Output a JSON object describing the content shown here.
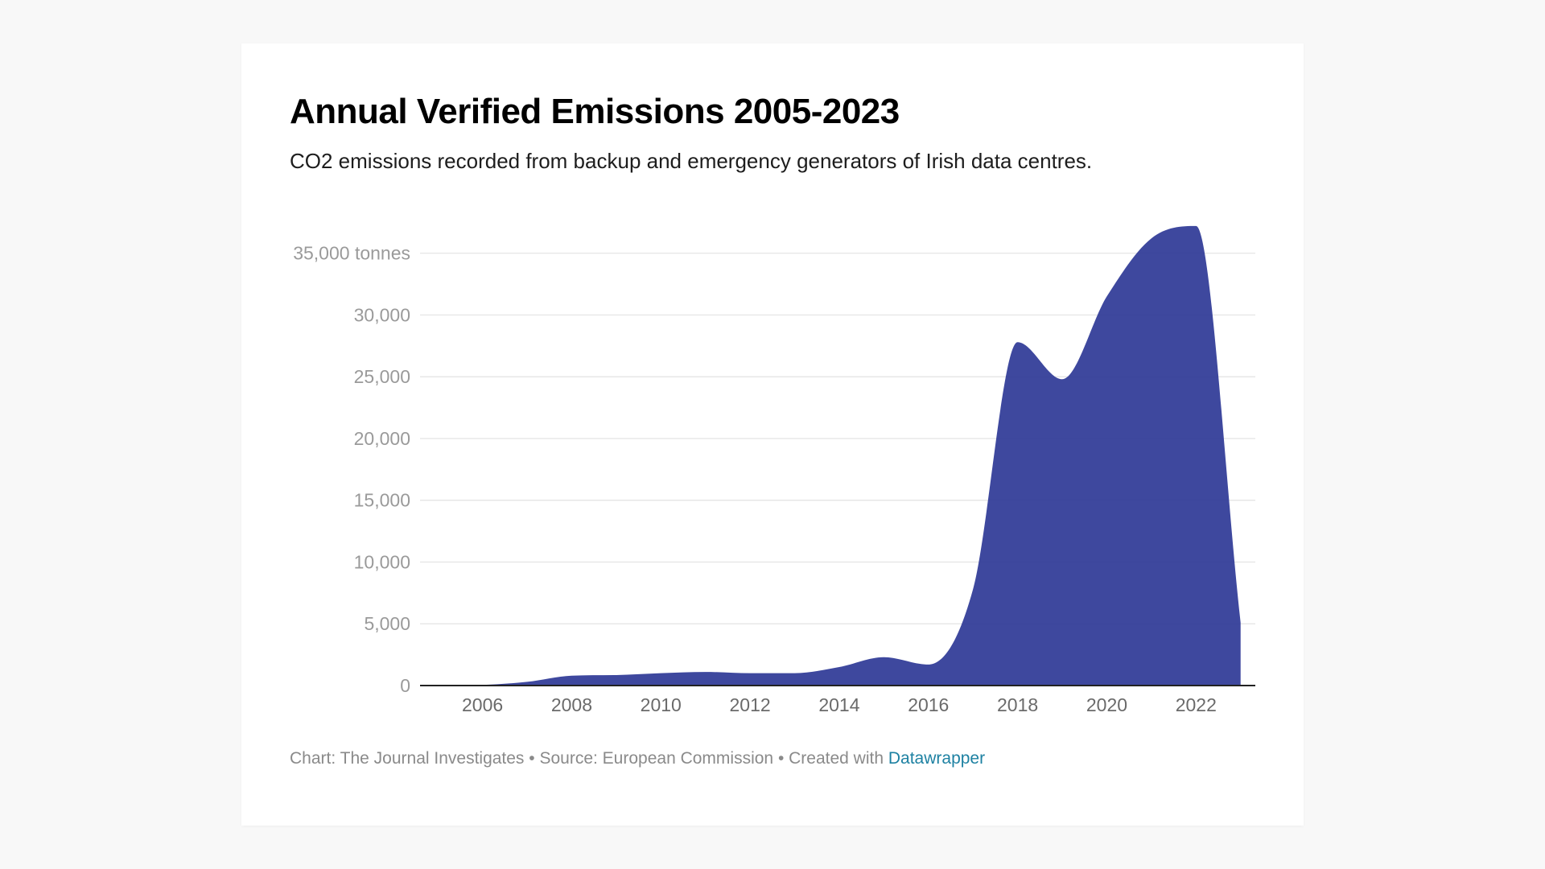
{
  "header": {
    "title": "Annual Verified Emissions 2005-2023",
    "subtitle": "CO2 emissions recorded from backup and emergency generators of Irish data centres."
  },
  "footer": {
    "chart_credit": "Chart: The Journal Investigates",
    "separator": " • ",
    "source": "Source: European Commission",
    "created_with": "Created with ",
    "tool_link": "Datawrapper"
  },
  "colors": {
    "area_fill": "#2f3a97",
    "grid": "#e3e3e3",
    "baseline": "#222222",
    "link": "#1d81a2"
  },
  "chart_data": {
    "type": "area",
    "title": "Annual Verified Emissions 2005-2023",
    "subtitle": "CO2 emissions recorded from backup and emergency generators of Irish data centres.",
    "xlabel": "",
    "ylabel": "",
    "x": [
      2005,
      2006,
      2007,
      2008,
      2009,
      2010,
      2011,
      2012,
      2013,
      2014,
      2015,
      2016,
      2017,
      2018,
      2019,
      2020,
      2021,
      2022,
      2023
    ],
    "series": [
      {
        "values": [
          0,
          50,
          300,
          800,
          850,
          1000,
          1100,
          1000,
          1000,
          1500,
          2300,
          1700,
          7800,
          27800,
          24800,
          31500,
          36200,
          37200,
          5100
        ]
      }
    ],
    "y_ticks": [
      0,
      5000,
      10000,
      15000,
      20000,
      25000,
      30000,
      35000
    ],
    "y_tick_labels": [
      "0",
      "5,000",
      "10,000",
      "15,000",
      "20,000",
      "25,000",
      "30,000",
      "35,000 tonnes"
    ],
    "x_ticks": [
      2006,
      2008,
      2010,
      2012,
      2014,
      2016,
      2018,
      2020,
      2022
    ],
    "x_tick_labels": [
      "2006",
      "2008",
      "2010",
      "2012",
      "2014",
      "2016",
      "2018",
      "2020",
      "2022"
    ],
    "xlim": [
      2004.6,
      2023.33
    ],
    "ylim": [
      0,
      35000
    ],
    "grid": true,
    "smooth": true
  }
}
